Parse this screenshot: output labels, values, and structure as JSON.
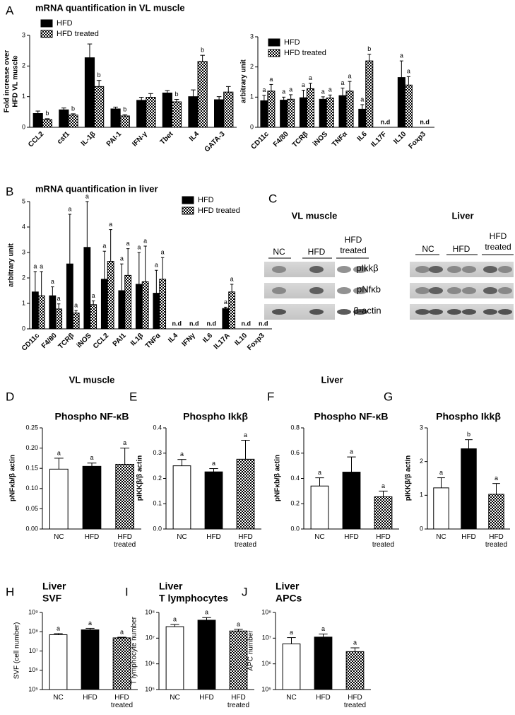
{
  "chart_data": [
    {
      "type": "bar",
      "panel": "A",
      "title": "mRNA quantification in  VL muscle",
      "ylabel": [
        "Fold increase over",
        "HFD VL muscle"
      ],
      "categories": [
        "CCL2",
        "csf1",
        "IL-1β",
        "PAI-1",
        "IFN-γ",
        "Tbet",
        "IL4",
        "GATA-3"
      ],
      "series": [
        {
          "name": "HFD",
          "color": "black",
          "values": [
            0.45,
            0.57,
            2.27,
            0.6,
            0.88,
            1.12,
            1.0,
            0.9
          ],
          "errors": [
            0.08,
            0.06,
            0.45,
            0.06,
            0.1,
            0.08,
            0.22,
            0.1
          ],
          "labels": [
            null,
            null,
            null,
            null,
            null,
            null,
            null,
            null
          ]
        },
        {
          "name": "HFD treated",
          "color": "checker",
          "values": [
            0.25,
            0.4,
            1.33,
            0.37,
            0.98,
            0.83,
            2.15,
            1.15
          ],
          "errors": [
            0.03,
            0.04,
            0.2,
            0.04,
            0.12,
            0.08,
            0.2,
            0.18
          ],
          "labels": [
            "b",
            "b",
            "b",
            "b",
            null,
            "b",
            "b",
            null
          ]
        }
      ],
      "ylim": [
        0,
        3
      ],
      "yticks": [
        0,
        1,
        2,
        3
      ]
    },
    {
      "type": "bar",
      "ylabel": [
        "arbitrary unit"
      ],
      "categories": [
        "CD11c",
        "F4/80",
        "TCRβ",
        "iNOS",
        "TNFα",
        "IL6",
        "IL17F",
        "IL10",
        "Foxp3"
      ],
      "category_notes": [
        null,
        null,
        null,
        null,
        null,
        null,
        "n.d",
        null,
        "n.d"
      ],
      "series": [
        {
          "name": "HFD",
          "color": "black",
          "values": [
            0.88,
            0.9,
            0.98,
            0.93,
            1.05,
            0.6,
            null,
            1.65,
            null
          ],
          "errors": [
            0.18,
            0.1,
            0.25,
            0.08,
            0.25,
            0.15,
            null,
            0.55,
            null
          ],
          "labels": [
            "a",
            "a",
            "a",
            "a",
            "a",
            "a",
            null,
            "a",
            null
          ]
        },
        {
          "name": "HFD treated",
          "color": "checker",
          "values": [
            1.2,
            0.93,
            1.28,
            0.97,
            1.2,
            2.2,
            null,
            1.4,
            null
          ],
          "errors": [
            0.22,
            0.15,
            0.18,
            0.1,
            0.32,
            0.22,
            null,
            0.28,
            null
          ],
          "labels": [
            "a",
            "a",
            "a",
            "a",
            "a",
            "b",
            null,
            "a",
            null
          ]
        }
      ],
      "ylim": [
        0,
        3
      ],
      "yticks": [
        0,
        1,
        2,
        3
      ]
    },
    {
      "type": "bar",
      "panel": "B",
      "title": "mRNA quantification in  liver",
      "ylabel": [
        "arbitrary unit"
      ],
      "categories": [
        "CD11c",
        "F4/80",
        "TCRβ",
        "iNOS",
        "CCL2",
        "PAI1",
        "IL1β",
        "TNFα",
        "IL4",
        "IFNγ",
        "IL6",
        "IL17A",
        "IL10",
        "Foxp3"
      ],
      "category_notes": [
        null,
        null,
        null,
        null,
        null,
        null,
        null,
        null,
        "n.d",
        "n.d",
        "n.d",
        null,
        "n.d",
        "n.d"
      ],
      "series": [
        {
          "name": "HFD",
          "color": "black",
          "values": [
            1.45,
            1.3,
            2.55,
            3.2,
            1.95,
            1.5,
            1.75,
            1.4,
            null,
            null,
            null,
            0.8,
            null,
            null
          ],
          "errors": [
            0.8,
            0.35,
            1.95,
            1.8,
            1.1,
            1.05,
            1.25,
            0.9,
            null,
            null,
            null,
            0.05,
            null,
            null
          ],
          "labels": [
            "a",
            "a",
            "a",
            "a",
            "a",
            "a",
            "a",
            "a",
            null,
            null,
            null,
            "a",
            null,
            null
          ]
        },
        {
          "name": "HFD treated",
          "color": "checker",
          "values": [
            1.3,
            0.78,
            0.62,
            0.95,
            2.65,
            2.1,
            1.85,
            1.95,
            null,
            null,
            null,
            1.45,
            null,
            null
          ],
          "errors": [
            0.95,
            0.2,
            0.1,
            0.15,
            1.25,
            1.05,
            1.4,
            0.85,
            null,
            null,
            null,
            0.3,
            null,
            null
          ],
          "labels": [
            "a",
            "a",
            "a",
            "a",
            "a",
            "a",
            "a",
            "a",
            null,
            null,
            null,
            "a",
            null,
            null
          ]
        }
      ],
      "ylim": [
        0,
        5
      ],
      "yticks": [
        0,
        1,
        2,
        3,
        4,
        5
      ]
    },
    {
      "type": "bar",
      "panel": "D",
      "title": [
        "Phospho NF-κB"
      ],
      "ylabel": [
        "pNFκb/β actin"
      ],
      "categories": [
        "NC",
        "HFD",
        "HFD treated"
      ],
      "series": [
        {
          "colors": [
            "white",
            "black",
            "checker"
          ],
          "values": [
            0.148,
            0.155,
            0.16
          ],
          "errors": [
            0.027,
            0.008,
            0.04
          ],
          "labels": [
            "a",
            "a",
            "a"
          ]
        }
      ],
      "ylim": [
        0,
        0.25
      ],
      "yticks": [
        {
          "value": 0,
          "label": "0.00"
        },
        {
          "value": 0.05,
          "label": "0.05"
        },
        {
          "value": 0.1,
          "label": "0.10"
        },
        {
          "value": 0.15,
          "label": "0.15"
        },
        {
          "value": 0.2,
          "label": "0.20"
        },
        {
          "value": 0.25,
          "label": "0.25"
        }
      ]
    },
    {
      "type": "bar",
      "panel": "E",
      "title": [
        "Phospho Ikkβ"
      ],
      "ylabel": [
        "pIKKβ/β actin"
      ],
      "categories": [
        "NC",
        "HFD",
        "HFD treated"
      ],
      "series": [
        {
          "colors": [
            "white",
            "black",
            "checker"
          ],
          "values": [
            0.25,
            0.226,
            0.276
          ],
          "errors": [
            0.025,
            0.013,
            0.075
          ],
          "labels": [
            "a",
            "a",
            "a"
          ]
        }
      ],
      "ylim": [
        0,
        0.4
      ],
      "yticks": [
        {
          "value": 0,
          "label": "0.0"
        },
        0.1,
        0.2,
        0.3,
        0.4
      ]
    },
    {
      "type": "bar",
      "panel": "F",
      "title": [
        "Phospho NF-κB"
      ],
      "ylabel": [
        "pNFκb/β actin"
      ],
      "categories": [
        "NC",
        "HFD",
        "HFD treated"
      ],
      "series": [
        {
          "colors": [
            "white",
            "black",
            "checker"
          ],
          "values": [
            0.34,
            0.45,
            0.255
          ],
          "errors": [
            0.065,
            0.12,
            0.045
          ],
          "labels": [
            "a",
            "a",
            "a"
          ]
        }
      ],
      "ylim": [
        0,
        0.8
      ],
      "yticks": [
        {
          "value": 0,
          "label": "0.0"
        },
        0.2,
        0.4,
        0.6,
        0.8
      ]
    },
    {
      "type": "bar",
      "panel": "G",
      "title": [
        "Phospho Ikkβ"
      ],
      "ylabel": [
        "pIKKβ/β actin"
      ],
      "categories": [
        "NC",
        "HFD",
        "HFD treated"
      ],
      "series": [
        {
          "colors": [
            "white",
            "black",
            "checker"
          ],
          "values": [
            1.22,
            2.38,
            1.03
          ],
          "errors": [
            0.3,
            0.27,
            0.32
          ],
          "labels": [
            "a",
            "b",
            "a"
          ]
        }
      ],
      "ylim": [
        0,
        3
      ],
      "yticks": [
        0,
        1,
        2,
        3
      ]
    },
    {
      "type": "bar",
      "panel": "H",
      "title": [
        "Liver",
        "SVF"
      ],
      "ylabel": [
        "SVF (cell number)"
      ],
      "categories": [
        "NC",
        "HFD",
        "HFD treated"
      ],
      "log_scale": true,
      "series": [
        {
          "colors": [
            "white",
            "black",
            "checker"
          ],
          "values": [
            70000000,
            125000000,
            48000000
          ],
          "errors": [
            10000000,
            25000000,
            4000000
          ],
          "labels": [
            "a",
            "a",
            "a"
          ]
        }
      ],
      "ylim": [
        100000,
        1000000000
      ],
      "yticks": [
        {
          "value": 100000,
          "label": "10⁵"
        },
        {
          "value": 1000000,
          "label": "10⁶"
        },
        {
          "value": 10000000,
          "label": "10⁷"
        },
        {
          "value": 100000000,
          "label": "10⁸"
        },
        {
          "value": 1000000000,
          "label": "10⁹"
        }
      ]
    },
    {
      "type": "bar",
      "panel": "I",
      "title": [
        "Liver",
        "T lymphocytes"
      ],
      "ylabel": [
        "T lymphocyte number"
      ],
      "categories": [
        "NC",
        "HFD",
        "HFD treated"
      ],
      "log_scale": true,
      "series": [
        {
          "colors": [
            "white",
            "black",
            "checker"
          ],
          "values": [
            28000000,
            50000000,
            19000000
          ],
          "errors": [
            6000000,
            13000000,
            3000000
          ],
          "labels": [
            "a",
            "a",
            "a"
          ]
        }
      ],
      "ylim": [
        100000,
        100000000
      ],
      "yticks": [
        {
          "value": 100000,
          "label": "10⁵"
        },
        {
          "value": 1000000,
          "label": "10⁶"
        },
        {
          "value": 10000000,
          "label": "10⁷"
        },
        {
          "value": 100000000,
          "label": "10⁸"
        }
      ]
    },
    {
      "type": "bar",
      "panel": "J",
      "title": [
        "Liver",
        "APCs"
      ],
      "ylabel": [
        "APC number"
      ],
      "categories": [
        "NC",
        "HFD",
        "HFD treated"
      ],
      "log_scale": true,
      "series": [
        {
          "colors": [
            "white",
            "black",
            "checker"
          ],
          "values": [
            6000000,
            11000000,
            3000000
          ],
          "errors": [
            4500000,
            3500000,
            1200000
          ],
          "labels": [
            "a",
            "a",
            "a"
          ]
        }
      ],
      "ylim": [
        100000,
        100000000
      ],
      "yticks": [
        {
          "value": 100000,
          "label": "10⁵"
        },
        {
          "value": 1000000,
          "label": "10⁶"
        },
        {
          "value": 10000000,
          "label": "10⁷"
        },
        {
          "value": 100000000,
          "label": "10⁸"
        }
      ]
    }
  ],
  "section_headers": [
    "VL muscle",
    "Liver"
  ],
  "blot": {
    "panel": "C",
    "tissues": [
      "VL muscle",
      "Liver"
    ],
    "groups": [
      "NC",
      "HFD",
      "HFD",
      "treated"
    ],
    "rows": [
      "pIkkβ",
      "pNfκb",
      "β-actin"
    ]
  }
}
